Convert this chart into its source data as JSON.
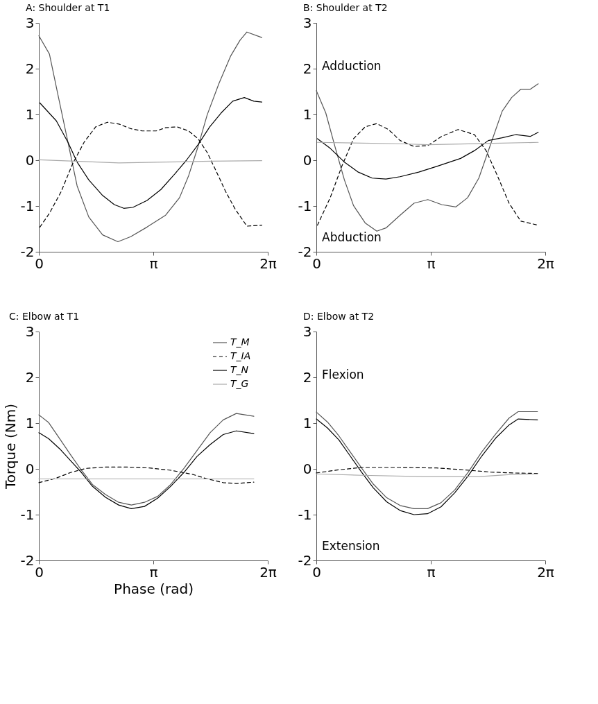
{
  "chart_data": [
    {
      "type": "line",
      "title": "A: Shoulder at  T1",
      "xlim": [
        0,
        6.2832
      ],
      "ylim": [
        -2,
        3
      ],
      "yticks": [
        -2,
        -1,
        0,
        1,
        2,
        3
      ],
      "xticks": [
        {
          "value": 0,
          "label": "0"
        },
        {
          "value": 3.1416,
          "label": "π"
        },
        {
          "value": 6.2832,
          "label": "2π"
        }
      ],
      "grid": false,
      "legend": false,
      "series": [
        {
          "color": "#555555",
          "line_style": "solid",
          "x": [
            0,
            0.29,
            0.54,
            0.8,
            1.05,
            1.37,
            1.75,
            2.17,
            2.52,
            2.97,
            3.48,
            3.86,
            4.11,
            4.37,
            4.62,
            4.94,
            5.26,
            5.52,
            5.71,
            6.12
          ],
          "values": [
            2.72,
            2.32,
            1.37,
            0.39,
            -0.56,
            -1.24,
            -1.63,
            -1.78,
            -1.67,
            -1.46,
            -1.2,
            -0.82,
            -0.34,
            0.3,
            0.99,
            1.67,
            2.27,
            2.62,
            2.8,
            2.68
          ]
        },
        {
          "color": "#000000",
          "line_style": "dashed",
          "x": [
            0.03,
            0.29,
            0.61,
            0.92,
            1.24,
            1.56,
            1.88,
            2.2,
            2.52,
            2.84,
            3.22,
            3.48,
            3.79,
            4.11,
            4.37,
            4.62,
            4.88,
            5.13,
            5.39,
            5.71,
            6.12
          ],
          "values": [
            -1.46,
            -1.16,
            -0.69,
            -0.09,
            0.39,
            0.73,
            0.83,
            0.79,
            0.69,
            0.64,
            0.64,
            0.71,
            0.73,
            0.64,
            0.47,
            0.17,
            -0.26,
            -0.69,
            -1.07,
            -1.44,
            -1.42
          ]
        },
        {
          "color": "#000000",
          "line_style": "solid",
          "x": [
            0.03,
            0.48,
            0.8,
            1.05,
            1.37,
            1.75,
            2.07,
            2.33,
            2.58,
            2.97,
            3.35,
            3.73,
            4.05,
            4.37,
            4.69,
            5.0,
            5.32,
            5.64,
            5.9,
            6.12
          ],
          "values": [
            1.25,
            0.86,
            0.39,
            -0.04,
            -0.43,
            -0.77,
            -0.97,
            -1.05,
            -1.03,
            -0.88,
            -0.64,
            -0.3,
            0.0,
            0.34,
            0.73,
            1.03,
            1.29,
            1.37,
            1.29,
            1.27
          ]
        },
        {
          "color": "#aaaaaa",
          "line_style": "solid",
          "x": [
            0,
            2.2,
            3.48,
            4.75,
            6.12
          ],
          "values": [
            0.01,
            -0.06,
            -0.04,
            -0.02,
            -0.01
          ]
        }
      ]
    },
    {
      "type": "line",
      "title": "B: Shoulder at  T2",
      "xlim": [
        0,
        6.2832
      ],
      "ylim": [
        -2,
        3
      ],
      "yticks": [
        -2,
        -1,
        0,
        1,
        2,
        3
      ],
      "xticks": [
        {
          "value": 0,
          "label": "0"
        },
        {
          "value": 3.1416,
          "label": "π"
        },
        {
          "value": 6.2832,
          "label": "2π"
        }
      ],
      "grid": false,
      "legend": false,
      "annotations": [
        "Adduction",
        "Abduction"
      ],
      "series": [
        {
          "color": "#555555",
          "line_style": "solid",
          "x": [
            0,
            0.26,
            0.51,
            0.77,
            1.02,
            1.34,
            1.66,
            1.91,
            2.3,
            2.68,
            3.06,
            3.44,
            3.83,
            4.15,
            4.46,
            4.78,
            5.1,
            5.36,
            5.61,
            5.87,
            6.09
          ],
          "values": [
            1.52,
            1.03,
            0.3,
            -0.43,
            -0.99,
            -1.37,
            -1.55,
            -1.48,
            -1.2,
            -0.94,
            -0.86,
            -0.97,
            -1.02,
            -0.82,
            -0.39,
            0.34,
            1.07,
            1.37,
            1.55,
            1.55,
            1.67
          ]
        },
        {
          "color": "#000000",
          "line_style": "dashed",
          "x": [
            0.03,
            0.38,
            0.7,
            1.02,
            1.34,
            1.66,
            1.98,
            2.3,
            2.68,
            3.06,
            3.44,
            3.89,
            4.34,
            4.66,
            4.97,
            5.29,
            5.61,
            6.09
          ],
          "values": [
            -1.42,
            -0.82,
            -0.13,
            0.47,
            0.73,
            0.8,
            0.67,
            0.43,
            0.3,
            0.32,
            0.52,
            0.67,
            0.56,
            0.21,
            -0.34,
            -0.94,
            -1.33,
            -1.42
          ]
        },
        {
          "color": "#000000",
          "line_style": "solid",
          "x": [
            0.03,
            0.38,
            0.77,
            1.15,
            1.53,
            1.91,
            2.3,
            2.81,
            3.32,
            3.96,
            4.34,
            4.72,
            5.1,
            5.48,
            5.87,
            6.09
          ],
          "values": [
            0.47,
            0.26,
            -0.04,
            -0.26,
            -0.39,
            -0.41,
            -0.36,
            -0.26,
            -0.13,
            0.04,
            0.21,
            0.43,
            0.49,
            0.56,
            0.52,
            0.61
          ]
        },
        {
          "color": "#aaaaaa",
          "line_style": "solid",
          "x": [
            0.03,
            2.3,
            3.06,
            4.84,
            6.09
          ],
          "values": [
            0.39,
            0.36,
            0.34,
            0.37,
            0.39
          ]
        }
      ]
    },
    {
      "type": "line",
      "title": "C: Elbow at  T1",
      "xlabel": "Phase (rad)",
      "ylabel": "Torque (Nm)",
      "xlim": [
        0,
        6.2832
      ],
      "ylim": [
        -2,
        3
      ],
      "yticks": [
        -2,
        -1,
        0,
        1,
        2,
        3
      ],
      "xticks": [
        {
          "value": 0,
          "label": "0"
        },
        {
          "value": 3.1416,
          "label": "π"
        },
        {
          "value": 6.2832,
          "label": "2π"
        }
      ],
      "grid": false,
      "legend": "top right",
      "series": [
        {
          "name": "T_M",
          "color": "#555555",
          "line_style": "solid",
          "x": [
            0,
            0.27,
            0.57,
            0.87,
            1.17,
            1.47,
            1.83,
            2.19,
            2.54,
            2.9,
            3.26,
            3.62,
            3.98,
            4.34,
            4.7,
            5.06,
            5.42,
            5.9
          ],
          "values": [
            1.18,
            1.01,
            0.66,
            0.31,
            -0.03,
            -0.34,
            -0.56,
            -0.73,
            -0.79,
            -0.73,
            -0.6,
            -0.34,
            0.01,
            0.4,
            0.79,
            1.07,
            1.21,
            1.15
          ]
        },
        {
          "name": "T_IA",
          "color": "#000000",
          "line_style": "dashed",
          "x": [
            0,
            0.45,
            0.87,
            1.29,
            1.83,
            2.42,
            3.02,
            3.62,
            4.22,
            4.58,
            5.06,
            5.42,
            5.9
          ],
          "values": [
            -0.3,
            -0.21,
            -0.08,
            0.01,
            0.04,
            0.04,
            0.02,
            -0.03,
            -0.12,
            -0.21,
            -0.3,
            -0.32,
            -0.29
          ]
        },
        {
          "name": "T_N",
          "color": "#000000",
          "line_style": "solid",
          "x": [
            0,
            0.27,
            0.57,
            0.87,
            1.17,
            1.47,
            1.83,
            2.19,
            2.54,
            2.9,
            3.26,
            3.62,
            3.98,
            4.34,
            4.7,
            5.06,
            5.42,
            5.9
          ],
          "values": [
            0.79,
            0.66,
            0.44,
            0.18,
            -0.08,
            -0.38,
            -0.62,
            -0.79,
            -0.87,
            -0.82,
            -0.64,
            -0.38,
            -0.08,
            0.27,
            0.53,
            0.75,
            0.83,
            0.77
          ]
        },
        {
          "name": "T_G",
          "color": "#aaaaaa",
          "line_style": "solid",
          "x": [
            0,
            5.9
          ],
          "values": [
            -0.22,
            -0.22
          ]
        }
      ]
    },
    {
      "type": "line",
      "title": "D: Elbow at T2",
      "xlim": [
        0,
        6.2832
      ],
      "ylim": [
        -2,
        3
      ],
      "yticks": [
        -2,
        -1,
        0,
        1,
        2,
        3
      ],
      "xticks": [
        {
          "value": 0,
          "label": "0"
        },
        {
          "value": 3.1416,
          "label": "π"
        },
        {
          "value": 6.2832,
          "label": "2π"
        }
      ],
      "grid": false,
      "legend": false,
      "annotations": [
        "Flexion",
        "Extension"
      ],
      "series": [
        {
          "color": "#555555",
          "line_style": "solid",
          "x": [
            0,
            0.31,
            0.62,
            0.93,
            1.24,
            1.56,
            1.93,
            2.3,
            2.68,
            3.05,
            3.42,
            3.8,
            4.17,
            4.54,
            4.92,
            5.29,
            5.54,
            6.07
          ],
          "values": [
            1.24,
            1.02,
            0.72,
            0.37,
            0.02,
            -0.33,
            -0.63,
            -0.8,
            -0.87,
            -0.87,
            -0.74,
            -0.46,
            -0.07,
            0.37,
            0.76,
            1.11,
            1.25,
            1.25
          ]
        },
        {
          "color": "#000000",
          "line_style": "dashed",
          "x": [
            0,
            0.62,
            1.24,
            2.3,
            3.3,
            4.04,
            4.79,
            5.41,
            6.07
          ],
          "values": [
            -0.09,
            -0.02,
            0.03,
            0.03,
            0.02,
            -0.02,
            -0.07,
            -0.09,
            -0.1
          ]
        },
        {
          "color": "#000000",
          "line_style": "solid",
          "x": [
            0,
            0.31,
            0.62,
            0.93,
            1.24,
            1.56,
            1.93,
            2.3,
            2.68,
            3.05,
            3.42,
            3.8,
            4.17,
            4.54,
            4.92,
            5.29,
            5.54,
            6.07
          ],
          "values": [
            1.09,
            0.89,
            0.63,
            0.28,
            -0.07,
            -0.41,
            -0.72,
            -0.91,
            -1.0,
            -0.98,
            -0.83,
            -0.52,
            -0.15,
            0.28,
            0.67,
            0.96,
            1.09,
            1.07
          ]
        },
        {
          "color": "#aaaaaa",
          "line_style": "solid",
          "x": [
            0,
            1.24,
            2.93,
            4.48,
            5.41,
            6.07
          ],
          "values": [
            -0.11,
            -0.14,
            -0.17,
            -0.17,
            -0.12,
            -0.11
          ]
        }
      ]
    }
  ]
}
